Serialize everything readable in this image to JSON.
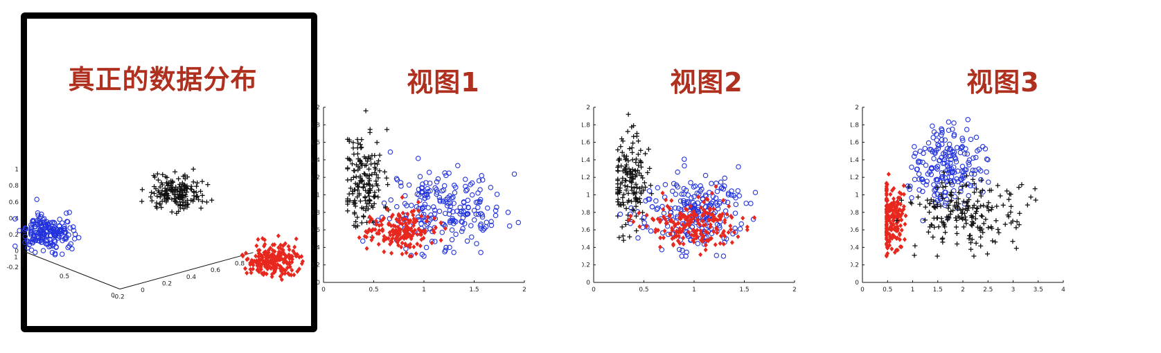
{
  "panels": [
    {
      "title": "真正的数据分布"
    },
    {
      "title": "视图1"
    },
    {
      "title": "视图2"
    },
    {
      "title": "视图3"
    }
  ],
  "colors": {
    "cluster_black": "#111111",
    "cluster_red": "#e8281e",
    "cluster_blue": "#2233dd",
    "title_red": "#b03020"
  },
  "chart_data": [
    {
      "type": "scatter",
      "title": "真正的数据分布",
      "projection": "3d",
      "xlabel": "",
      "ylabel": "",
      "zlabel": "",
      "xticks": [
        "-0.2",
        "0",
        "0.2",
        "0.4",
        "0.6",
        "0.8"
      ],
      "yticks": [
        "0",
        "0.5",
        "1"
      ],
      "zticks": [
        "-0.2",
        "0",
        "0.2",
        "0.4",
        "0.6",
        "0.8",
        "1"
      ],
      "series": [
        {
          "marker": "plus",
          "color": "black",
          "center": [
            0.55,
            0.35,
            0.7
          ],
          "spread": 0.09,
          "n": 180
        },
        {
          "marker": "circle",
          "color": "blue",
          "center": [
            0.0,
            1.0,
            0.15
          ],
          "spread": 0.09,
          "n": 200
        },
        {
          "marker": "diamond",
          "color": "red",
          "center": [
            0.9,
            -0.2,
            0.0
          ],
          "spread": 0.09,
          "n": 200
        }
      ]
    },
    {
      "type": "scatter",
      "title": "视图1",
      "xlim": [
        0,
        2
      ],
      "ylim": [
        0,
        2
      ],
      "xticks": [
        "0",
        "0.5",
        "1",
        "1.5",
        "2"
      ],
      "yticks": [
        "0",
        "0.2",
        "0.4",
        "0.6",
        "0.8",
        "1",
        "1.2",
        "1.4",
        "1.6",
        "1.8",
        "2"
      ],
      "series": [
        {
          "marker": "plus",
          "color": "black",
          "center": [
            0.4,
            1.15
          ],
          "spread": [
            0.1,
            0.3
          ],
          "n": 170
        },
        {
          "marker": "circle",
          "color": "blue",
          "center": [
            1.2,
            0.85
          ],
          "spread": [
            0.3,
            0.22
          ],
          "n": 220
        },
        {
          "marker": "diamond",
          "color": "red",
          "center": [
            0.75,
            0.6
          ],
          "spread": [
            0.15,
            0.12
          ],
          "n": 180
        }
      ]
    },
    {
      "type": "scatter",
      "title": "视图2",
      "xlim": [
        0,
        2
      ],
      "ylim": [
        0,
        2
      ],
      "xticks": [
        "0",
        "0.5",
        "1",
        "1.5",
        "2"
      ],
      "yticks": [
        "0",
        "0.2",
        "0.4",
        "0.6",
        "0.8",
        "1",
        "1.2",
        "1.4",
        "1.6",
        "1.8",
        "2"
      ],
      "series": [
        {
          "marker": "plus",
          "color": "black",
          "center": [
            0.35,
            1.15
          ],
          "spread": [
            0.09,
            0.25
          ],
          "n": 160
        },
        {
          "marker": "circle",
          "color": "blue",
          "center": [
            1.0,
            0.8
          ],
          "spread": [
            0.25,
            0.22
          ],
          "n": 220
        },
        {
          "marker": "diamond",
          "color": "red",
          "center": [
            0.95,
            0.65
          ],
          "spread": [
            0.25,
            0.14
          ],
          "n": 200
        }
      ]
    },
    {
      "type": "scatter",
      "title": "视图3",
      "xlim": [
        0,
        4
      ],
      "ylim": [
        0,
        2
      ],
      "xticks": [
        "0",
        "0.5",
        "1",
        "1.5",
        "2",
        "2.5",
        "3",
        "3.5",
        "4"
      ],
      "yticks": [
        "0",
        "0.2",
        "0.4",
        "0.6",
        "0.8",
        "1",
        "1.2",
        "1.4",
        "1.6",
        "1.8",
        "2"
      ],
      "series": [
        {
          "marker": "diamond",
          "color": "red",
          "center": [
            0.55,
            0.75
          ],
          "spread": [
            0.13,
            0.2
          ],
          "n": 200
        },
        {
          "marker": "circle",
          "color": "blue",
          "center": [
            1.7,
            1.35
          ],
          "spread": [
            0.35,
            0.22
          ],
          "n": 200
        },
        {
          "marker": "plus",
          "color": "black",
          "center": [
            2.1,
            0.8
          ],
          "spread": [
            0.55,
            0.2
          ],
          "n": 200
        }
      ]
    }
  ]
}
